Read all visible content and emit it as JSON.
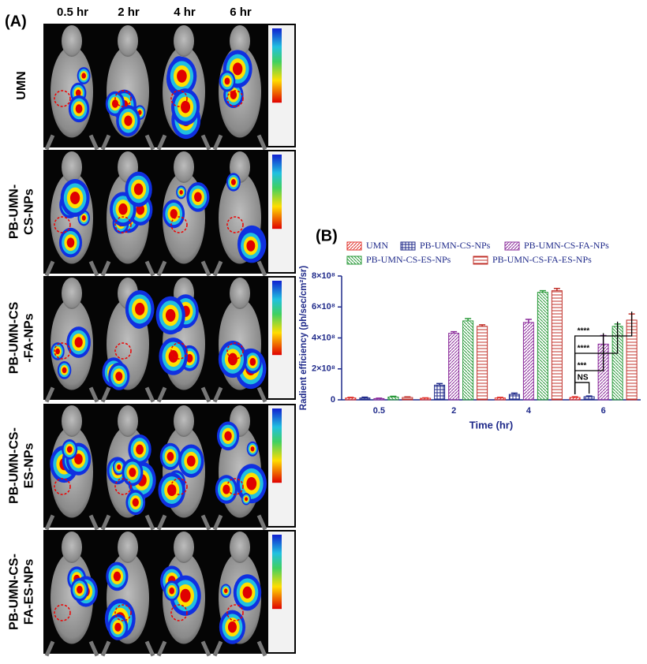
{
  "panel_a": {
    "label": "(A)",
    "columns": [
      "0.5 hr",
      "2 hr",
      "4 hr",
      "6 hr"
    ],
    "rows": [
      [
        "UMN"
      ],
      [
        "PB-UMN-",
        "CS-NPs"
      ],
      [
        "PB-UMN-CS",
        "-FA-NPs"
      ],
      [
        "PB-UMN-CS-",
        "ES-NPs"
      ],
      [
        "PB-UMN-CS-",
        "FA-ES-NPs"
      ]
    ]
  },
  "chart_data": {
    "type": "bar",
    "panel_label": "(B)",
    "x_label": "Time (hr)",
    "y_label": "Radient efficiency (ph/sec/cm²/sr)",
    "categories": [
      "0.5",
      "2",
      "4",
      "6"
    ],
    "series": [
      {
        "name": "UMN",
        "color": "#e0302a",
        "hatch": "diag",
        "values": [
          12000000,
          10000000,
          12000000,
          15000000
        ],
        "errors": [
          4000000,
          3000000,
          4000000,
          5000000
        ]
      },
      {
        "name": "PB-UMN-CS-NPs",
        "color": "#1f2a8a",
        "hatch": "grid",
        "values": [
          12000000,
          95000000,
          35000000,
          20000000
        ],
        "errors": [
          5000000,
          10000000,
          8000000,
          5000000
        ]
      },
      {
        "name": "PB-UMN-CS-FA-NPs",
        "color": "#8a2a9a",
        "hatch": "diag",
        "values": [
          8000000,
          430000000,
          500000000,
          360000000
        ],
        "errors": [
          3000000,
          10000000,
          20000000,
          55000000
        ]
      },
      {
        "name": "PB-UMN-CS-ES-NPs",
        "color": "#2a9a3a",
        "hatch": "back",
        "values": [
          18000000,
          510000000,
          695000000,
          475000000
        ],
        "errors": [
          5000000,
          15000000,
          10000000,
          15000000
        ]
      },
      {
        "name": "PB-UMN-CS-FA-ES-NPs",
        "color": "#c0302a",
        "hatch": "horiz",
        "values": [
          15000000,
          475000000,
          705000000,
          515000000
        ],
        "errors": [
          4000000,
          10000000,
          15000000,
          40000000
        ]
      }
    ],
    "annotations": [
      "NS",
      "***",
      "****",
      "****"
    ],
    "ylim": [
      0,
      800000000
    ],
    "yticks": [
      0,
      {
        "value": 200000000,
        "label": "2×10⁸"
      },
      {
        "value": 400000000,
        "label": "4×10⁸"
      },
      {
        "value": 600000000,
        "label": "6×10⁸"
      },
      {
        "value": 800000000,
        "label": "8×10⁸"
      }
    ]
  }
}
